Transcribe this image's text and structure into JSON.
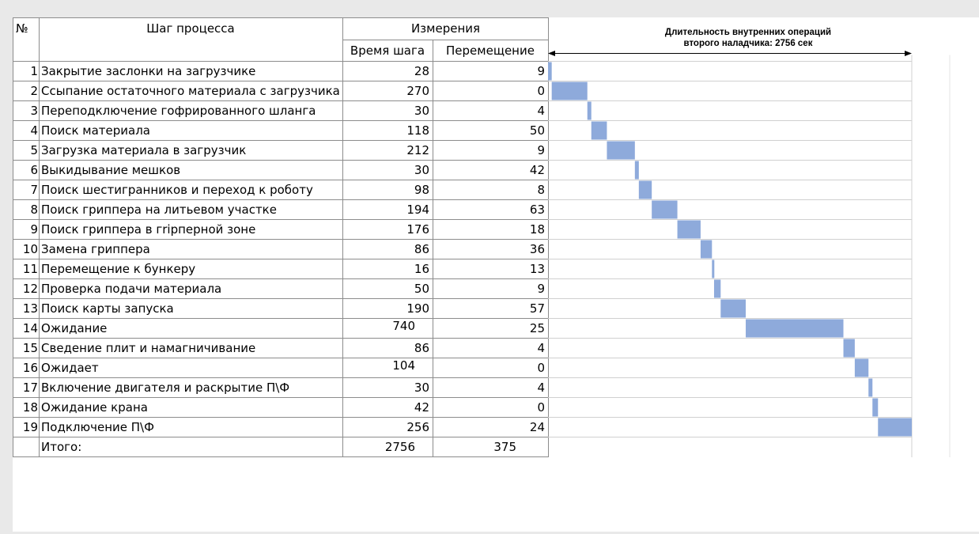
{
  "table": {
    "num_header": "№",
    "name_header": "Шаг процесса",
    "measure_header": "Измерения",
    "time_header": "Время шага",
    "move_header": "Перемещение",
    "rows": [
      {
        "num": "1",
        "name": "Закрытие заслонки на загрузчике",
        "time": "28",
        "move": "9"
      },
      {
        "num": "2",
        "name": "Ссыпание остаточного материала с загрузчика",
        "time": "270",
        "move": "0"
      },
      {
        "num": "3",
        "name": "Переподключение гофрированного шланга",
        "time": "30",
        "move": "4"
      },
      {
        "num": "4",
        "name": "Поиск материала",
        "time": "118",
        "move": "50"
      },
      {
        "num": "5",
        "name": "Загрузка материала в загрузчик",
        "time": "212",
        "move": "9"
      },
      {
        "num": "6",
        "name": "Выкидывание мешков",
        "time": "30",
        "move": "42"
      },
      {
        "num": "7",
        "name": "Поиск шестигранников и переход к роботу",
        "time": "98",
        "move": "8"
      },
      {
        "num": "8",
        "name": "Поиск гриппера на литьевом участке",
        "time": "194",
        "move": "63"
      },
      {
        "num": "9",
        "name": "Поиск гриппера в гripперной зоне",
        "time": "176",
        "move": "18"
      },
      {
        "num": "10",
        "name": "Замена гриппера",
        "time": "86",
        "move": "36"
      },
      {
        "num": "11",
        "name": "Перемещение к бункеру",
        "time": "16",
        "move": "13"
      },
      {
        "num": "12",
        "name": "Проверка подачи материала",
        "time": "50",
        "move": "9"
      },
      {
        "num": "13",
        "name": "Поиск карты запуска",
        "time": "190",
        "move": "57"
      },
      {
        "num": "14",
        "name": "Ожидание",
        "time": "740",
        "move": "25"
      },
      {
        "num": "15",
        "name": "Сведение плит и намагничивание",
        "time": "86",
        "move": "4"
      },
      {
        "num": "16",
        "name": "Ожидает",
        "time": "104",
        "move": "0"
      },
      {
        "num": "17",
        "name": "Включение двигателя и раскрытие П\\Ф",
        "time": "30",
        "move": "4"
      },
      {
        "num": "18",
        "name": "Ожидание  крана",
        "time": "42",
        "move": "0"
      },
      {
        "num": "19",
        "name": "Подключение П\\Ф",
        "time": "256",
        "move": "24"
      }
    ],
    "total_label": "Итого:",
    "total_time": "2756",
    "total_move": "375"
  },
  "chart_data": {
    "type": "bar",
    "title": "Длительность внутренних операций\nвторого наладчика: 2756 сек",
    "categories": [
      "1",
      "2",
      "3",
      "4",
      "5",
      "6",
      "7",
      "8",
      "9",
      "10",
      "11",
      "12",
      "13",
      "14",
      "15",
      "16",
      "17",
      "18",
      "19"
    ],
    "start": [
      0,
      28,
      298,
      328,
      446,
      658,
      688,
      786,
      980,
      1156,
      1242,
      1258,
      1308,
      1498,
      2238,
      2324,
      2428,
      2458,
      2500
    ],
    "duration": [
      28,
      270,
      30,
      118,
      212,
      30,
      98,
      194,
      176,
      86,
      16,
      50,
      190,
      740,
      86,
      104,
      30,
      42,
      256
    ],
    "total": 2756,
    "bar_color": "#8eaadb"
  }
}
